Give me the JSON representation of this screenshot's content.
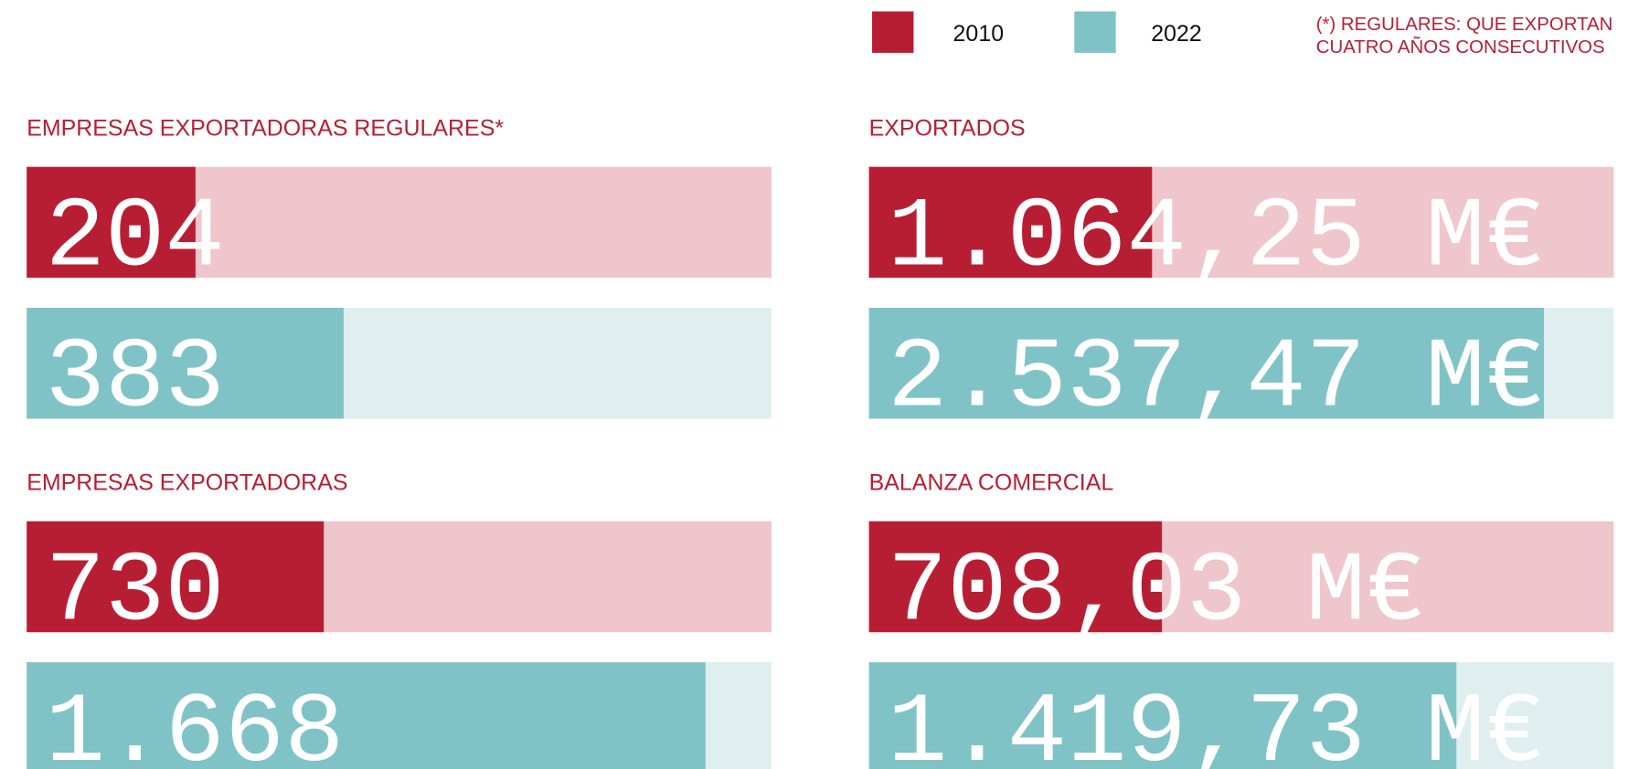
{
  "legend": [
    {
      "name": "2010",
      "color": "#b81e33"
    },
    {
      "name": "2022",
      "color": "#80c3c6"
    }
  ],
  "note": [
    "(*) REGULARES: QUE EXPORTAN",
    "CUATRO AÑOS CONSECUTIVOS"
  ],
  "chart_data": [
    {
      "type": "bar",
      "title": "EMPRESAS EXPORTADORAS REGULARES*",
      "values": [
        204,
        383
      ],
      "colors": [
        "#b81e33",
        "#80c3c6"
      ],
      "track_colors": [
        "#efc6cc",
        "#dfefef"
      ],
      "xlim": [
        0,
        900
      ]
    },
    {
      "type": "bar",
      "title": "EXPORTADOS",
      "values": [
        1064.25,
        2537.47
      ],
      "value_labels": [
        "1.064,25 M€",
        "2.537,47 M€"
      ],
      "colors": [
        "#b81e33",
        "#80c3c6"
      ],
      "track_colors": [
        "#efc6cc",
        "#dfefef"
      ],
      "xlim": [
        0,
        2800
      ]
    },
    {
      "type": "bar",
      "title": "EMPRESAS EXPORTADORAS",
      "values": [
        730,
        1668
      ],
      "value_labels": [
        "730",
        "1.668"
      ],
      "colors": [
        "#b81e33",
        "#80c3c6"
      ],
      "track_colors": [
        "#efc6cc",
        "#dfefef"
      ],
      "xlim": [
        0,
        1830
      ]
    },
    {
      "type": "bar",
      "title": "BALANZA COMERCIAL",
      "values": [
        708.03,
        1419.73
      ],
      "value_labels": [
        "708,03 M€",
        "1.419,73 M€"
      ],
      "colors": [
        "#b81e33",
        "#80c3c6"
      ],
      "track_colors": [
        "#efc6cc",
        "#dfefef"
      ],
      "xlim": [
        0,
        1800
      ]
    }
  ]
}
